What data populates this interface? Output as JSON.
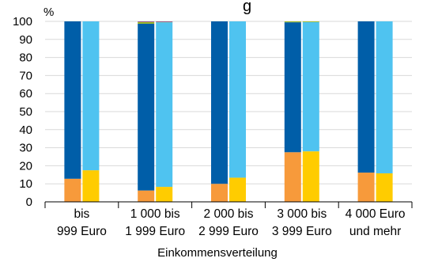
{
  "chart_data": {
    "type": "bar",
    "stacked": true,
    "title_fragment": "g",
    "ylabel": "%",
    "xlabel": "Einkommensverteilung",
    "ylim": [
      0,
      100
    ],
    "yticks": [
      0,
      10,
      20,
      30,
      40,
      50,
      60,
      70,
      80,
      90,
      100
    ],
    "grid": true,
    "legend": "none",
    "categories": [
      [
        "bis",
        "999 Euro"
      ],
      [
        "1 000 bis",
        "1 999 Euro"
      ],
      [
        "2 000 bis",
        "2 999 Euro"
      ],
      [
        "3 000 bis",
        "3 999 Euro"
      ],
      [
        "4 000 Euro",
        "und mehr"
      ]
    ],
    "bar_groups": [
      {
        "color_bottom": "#F79A3B",
        "color_main": "#005EA8",
        "color_top_1": "#9DBA27",
        "color_top_2": "#8A2A8F",
        "bottom": [
          12.8,
          6.3,
          10.0,
          27.5,
          16.2
        ],
        "main": [
          87.2,
          92.4,
          90.0,
          72.0,
          83.8
        ],
        "top_1": [
          0,
          1.0,
          0,
          0.5,
          0
        ],
        "top_2": [
          0,
          0.3,
          0,
          0,
          0
        ]
      },
      {
        "color_bottom": "#FFCC00",
        "color_main": "#4FC3F0",
        "color_top_1": "#9DBA27",
        "color_top_2": "#8A2A8F",
        "bottom": [
          17.5,
          8.3,
          13.4,
          28.0,
          15.8
        ],
        "main": [
          82.5,
          91.2,
          86.6,
          71.6,
          84.2
        ],
        "top_1": [
          0,
          0.2,
          0,
          0.4,
          0
        ],
        "top_2": [
          0,
          0.3,
          0,
          0,
          0
        ]
      }
    ]
  }
}
